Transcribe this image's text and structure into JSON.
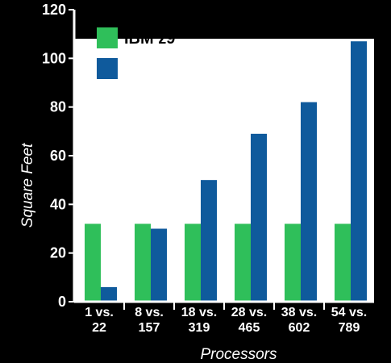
{
  "chart_data": {
    "type": "bar",
    "categories": [
      [
        "1 vs.",
        "22"
      ],
      [
        "8 vs.",
        "157"
      ],
      [
        "18 vs.",
        "319"
      ],
      [
        "28 vs.",
        "465"
      ],
      [
        "38 vs.",
        "602"
      ],
      [
        "54 vs.",
        "789"
      ]
    ],
    "series": [
      {
        "name": "IBM z9",
        "color": "#2fbf5a",
        "values": [
          32,
          32,
          32,
          32,
          32,
          32
        ]
      },
      {
        "name": "",
        "color": "#0f5a9c",
        "values": [
          6,
          30,
          50,
          69,
          82,
          107
        ]
      }
    ],
    "xlabel": "Processors",
    "ylabel": "Square Feet",
    "ylim": [
      0,
      120
    ],
    "yticks": [
      0,
      20,
      40,
      60,
      80,
      100,
      120
    ],
    "plot_background": "#ffffff",
    "background": "#000000",
    "legend": "top-left",
    "grid": false
  }
}
